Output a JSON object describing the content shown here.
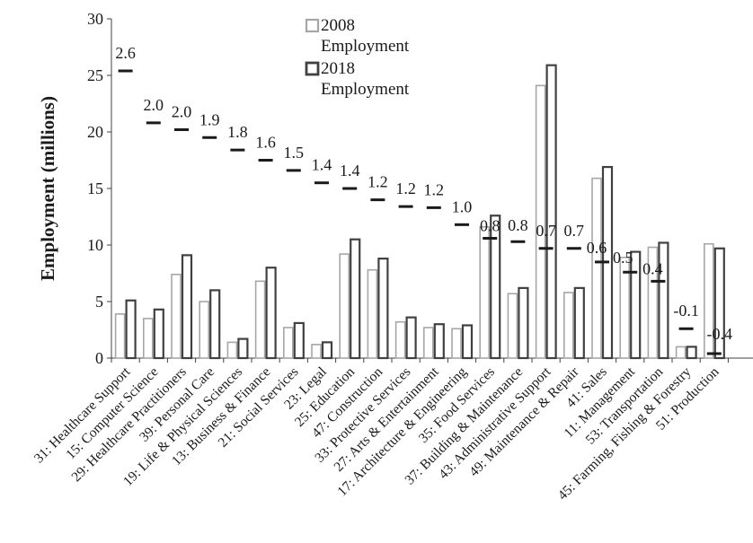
{
  "chart_data": {
    "type": "bar",
    "title": "",
    "xlabel": "",
    "ylabel": "Employment (millions)",
    "ylim": [
      0,
      30
    ],
    "yticks": [
      "0",
      "5",
      "10",
      "15",
      "20",
      "25",
      "30"
    ],
    "grid": false,
    "legend_position": "top-center",
    "categories": [
      "31: Healthcare Support",
      "15: Computer Science",
      "29: Healthcare Practitioners",
      "39: Personal Care",
      "19: Life & Physical Sciences",
      "13: Business & Finance",
      "21: Social Services",
      "23: Legal",
      "25: Education",
      "47: Construction",
      "33: Protective Services",
      "27: Arts & Entertainment",
      "17: Architecture & Engineering",
      "35: Food Services",
      "37: Building & Maintenance",
      "43: Administrative Support",
      "49: Maintenance & Repair",
      "41: Sales",
      "11: Management",
      "53: Transportation",
      "45: Farming, Fishing & Forestry",
      "51: Production"
    ],
    "series": [
      {
        "name": "2008 Employment",
        "color": "#a6a6a6",
        "values": [
          3.9,
          3.5,
          7.4,
          5.0,
          1.4,
          6.8,
          2.7,
          1.2,
          9.2,
          7.8,
          3.2,
          2.7,
          2.6,
          11.6,
          5.7,
          24.1,
          5.8,
          15.9,
          8.9,
          9.8,
          1.0,
          10.1
        ]
      },
      {
        "name": "2018 Employment",
        "color": "#404040",
        "values": [
          5.1,
          4.3,
          9.1,
          6.0,
          1.7,
          8.0,
          3.1,
          1.4,
          10.5,
          8.8,
          3.6,
          3.0,
          2.9,
          12.6,
          6.2,
          25.9,
          6.2,
          16.9,
          9.4,
          10.2,
          1.0,
          9.7
        ]
      }
    ],
    "annotations": {
      "marker_style": "dash",
      "labels": [
        "2.6",
        "2.0",
        "2.0",
        "1.9",
        "1.8",
        "1.6",
        "1.5",
        "1.4",
        "1.4",
        "1.2",
        "1.2",
        "1.2",
        "1.0",
        "0.8",
        "0.8",
        "0.7",
        "0.7",
        "0.6",
        "0.5",
        "0.4",
        "-0.1",
        "-0.4"
      ],
      "marker_values": [
        25.4,
        20.8,
        20.2,
        19.5,
        18.4,
        17.5,
        16.6,
        15.5,
        15.0,
        14.0,
        13.4,
        13.3,
        11.8,
        10.6,
        10.3,
        9.7,
        9.7,
        8.5,
        7.6,
        6.8,
        2.6,
        0.4
      ]
    }
  }
}
